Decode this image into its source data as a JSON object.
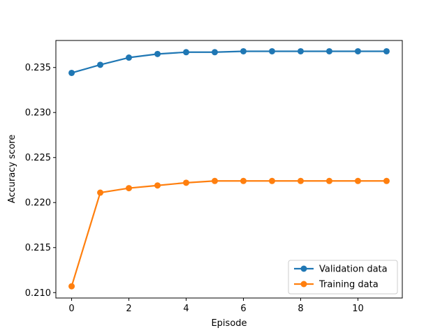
{
  "chart_data": {
    "type": "line",
    "title": "",
    "xlabel": "Episode",
    "ylabel": "Accuracy score",
    "xlim": [
      -0.55,
      11.55
    ],
    "ylim": [
      0.2094,
      0.238
    ],
    "x_ticks": [
      0,
      2,
      4,
      6,
      8,
      10
    ],
    "y_ticks": [
      0.21,
      0.215,
      0.22,
      0.225,
      0.23,
      0.235
    ],
    "y_tick_labels": [
      "0.210",
      "0.215",
      "0.220",
      "0.225",
      "0.230",
      "0.235"
    ],
    "grid": false,
    "legend_position": "lower-right",
    "x": [
      0,
      1,
      2,
      3,
      4,
      5,
      6,
      7,
      8,
      9,
      10,
      11
    ],
    "series": [
      {
        "name": "Validation data",
        "color": "#1f77b4",
        "marker": "circle",
        "values": [
          0.2344,
          0.2353,
          0.2361,
          0.2365,
          0.2367,
          0.2367,
          0.2368,
          0.2368,
          0.2368,
          0.2368,
          0.2368,
          0.2368
        ]
      },
      {
        "name": "Training data",
        "color": "#ff7f0e",
        "marker": "circle",
        "values": [
          0.2107,
          0.2211,
          0.2216,
          0.2219,
          0.2222,
          0.2224,
          0.2224,
          0.2224,
          0.2224,
          0.2224,
          0.2224,
          0.2224
        ]
      }
    ]
  }
}
